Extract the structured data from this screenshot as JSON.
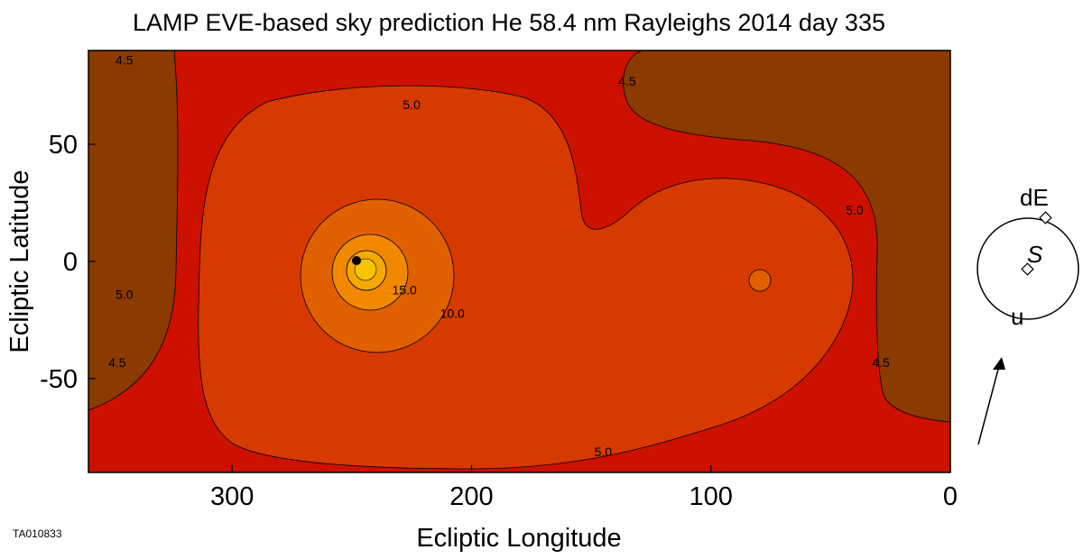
{
  "chart_data": {
    "type": "heatmap",
    "title": "LAMP EVE-based sky prediction He 58.4 nm Rayleighs 2014 day 335",
    "xlabel": "Ecliptic Longitude",
    "ylabel": "Ecliptic Latitude",
    "xlim": [
      360,
      0
    ],
    "ylim": [
      -90,
      90
    ],
    "x_ticks": [
      "300",
      "200",
      "100",
      "0"
    ],
    "x_tick_values": [
      300,
      200,
      100,
      0
    ],
    "y_ticks": [
      "50",
      "0",
      "-50"
    ],
    "y_tick_values": [
      50,
      0,
      -50
    ],
    "contour_levels": [
      4.5,
      5.0,
      10.0,
      15.0
    ],
    "contour_labels": [
      {
        "text": "4.5",
        "x": 345,
        "y": 84
      },
      {
        "text": "4.5",
        "x": 135,
        "y": 75
      },
      {
        "text": "4.5",
        "x": 348,
        "y": -45
      },
      {
        "text": "4.5",
        "x": 29,
        "y": -45
      },
      {
        "text": "5.0",
        "x": 225,
        "y": 65
      },
      {
        "text": "5.0",
        "x": 345,
        "y": -16
      },
      {
        "text": "5.0",
        "x": 40,
        "y": 20
      },
      {
        "text": "5.0",
        "x": 145,
        "y": -83
      },
      {
        "text": "15.0",
        "x": 228,
        "y": -14
      },
      {
        "text": "10.0",
        "x": 208,
        "y": -24
      }
    ],
    "sun_marker": {
      "x": 249,
      "y": 1
    },
    "secondary_peak": {
      "x": 80,
      "y": -8
    },
    "colors": {
      "below_4.5": "#8B3A00",
      "4.5_to_5.0": "#CC1100",
      "5.0_to_10.0": "#D63A00",
      "10.0_to_15.0": "#E06000",
      "15.0_plus": "#F08800",
      "peak_inner": "#F5A800",
      "peak_core": "#F8C400"
    }
  },
  "inset": {
    "label_de": "dE",
    "label_s": "S",
    "label_u": "u"
  },
  "figure_id": "TA010833"
}
